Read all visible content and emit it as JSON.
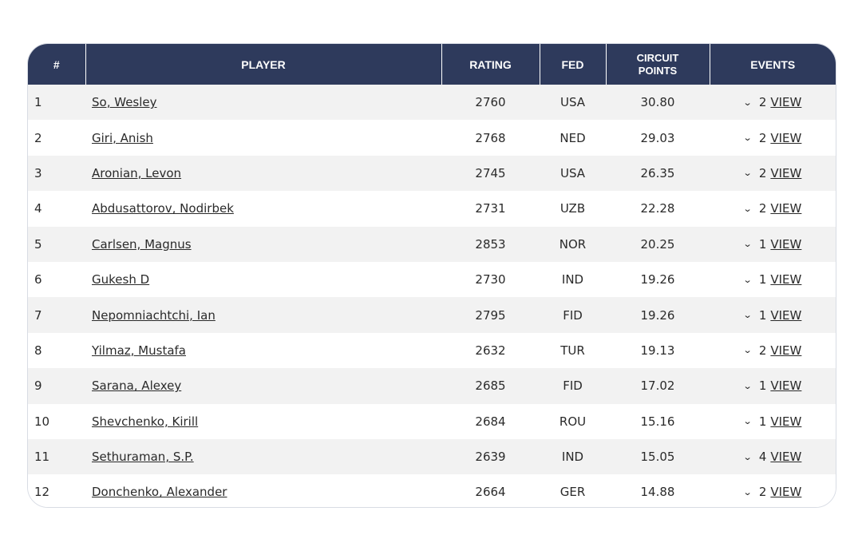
{
  "columns": {
    "rank": "#",
    "player": "PLAYER",
    "rating": "RATING",
    "fed": "FED",
    "circuit_line1": "CIRCUIT",
    "circuit_line2": "POINTS",
    "events": "EVENTS"
  },
  "view_label": "VIEW",
  "rows": [
    {
      "rank": "1",
      "player": "So, Wesley",
      "rating": "2760",
      "fed": "USA",
      "points": "30.80",
      "events": "2"
    },
    {
      "rank": "2",
      "player": "Giri, Anish",
      "rating": "2768",
      "fed": "NED",
      "points": "29.03",
      "events": "2"
    },
    {
      "rank": "3",
      "player": "Aronian, Levon",
      "rating": "2745",
      "fed": "USA",
      "points": "26.35",
      "events": "2"
    },
    {
      "rank": "4",
      "player": "Abdusattorov, Nodirbek",
      "rating": "2731",
      "fed": "UZB",
      "points": "22.28",
      "events": "2"
    },
    {
      "rank": "5",
      "player": "Carlsen, Magnus",
      "rating": "2853",
      "fed": "NOR",
      "points": "20.25",
      "events": "1"
    },
    {
      "rank": "6",
      "player": "Gukesh D",
      "rating": "2730",
      "fed": "IND",
      "points": "19.26",
      "events": "1"
    },
    {
      "rank": "7",
      "player": "Nepomniachtchi, Ian",
      "rating": "2795",
      "fed": "FID",
      "points": "19.26",
      "events": "1"
    },
    {
      "rank": "8",
      "player": "Yilmaz, Mustafa",
      "rating": "2632",
      "fed": "TUR",
      "points": "19.13",
      "events": "2"
    },
    {
      "rank": "9",
      "player": "Sarana, Alexey",
      "rating": "2685",
      "fed": "FID",
      "points": "17.02",
      "events": "1"
    },
    {
      "rank": "10",
      "player": "Shevchenko, Kirill",
      "rating": "2684",
      "fed": "ROU",
      "points": "15.16",
      "events": "1"
    },
    {
      "rank": "11",
      "player": "Sethuraman, S.P.",
      "rating": "2639",
      "fed": "IND",
      "points": "15.05",
      "events": "4"
    },
    {
      "rank": "12",
      "player": "Donchenko, Alexander",
      "rating": "2664",
      "fed": "GER",
      "points": "14.88",
      "events": "2"
    }
  ],
  "icons": {
    "expand": "chevron-down-icon"
  },
  "colors": {
    "header_bg": "#2e3a5c",
    "row_alt_bg": "#f2f2f2"
  }
}
